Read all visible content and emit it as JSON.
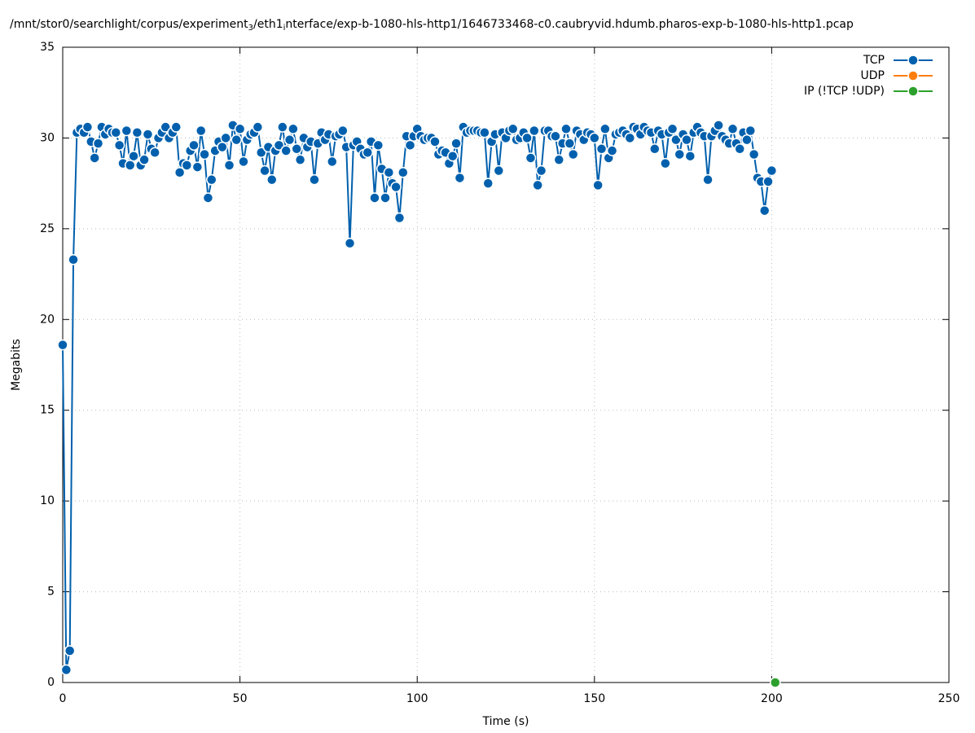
{
  "chart_data": {
    "type": "line",
    "title": [
      "/mnt/stor0/searchlight/corpus/experiment",
      "3",
      "/eth1",
      "i",
      "nterface/exp-b-1080-hls-http1/1646733468-c0.caubryvid.hdumb.pharos-exp-b-1080-hls-http1.pcap"
    ],
    "xlabel": "Time (s)",
    "ylabel": "Megabits",
    "xlim": [
      0,
      250
    ],
    "xticks": [
      0,
      50,
      100,
      150,
      200,
      250
    ],
    "ylim": [
      0,
      35
    ],
    "yticks": [
      0,
      5,
      10,
      15,
      20,
      25,
      30,
      35
    ],
    "grid": true,
    "legend": "top-right",
    "series": [
      {
        "name": "TCP",
        "color": "#0060ad",
        "x": [
          0,
          1,
          2,
          3,
          4,
          5,
          6,
          7,
          8,
          9,
          10,
          11,
          12,
          13,
          14,
          15,
          16,
          17,
          18,
          19,
          20,
          21,
          22,
          23,
          24,
          25,
          26,
          27,
          28,
          29,
          30,
          31,
          32,
          33,
          34,
          35,
          36,
          37,
          38,
          39,
          40,
          41,
          42,
          43,
          44,
          45,
          46,
          47,
          48,
          49,
          50,
          51,
          52,
          53,
          54,
          55,
          56,
          57,
          58,
          59,
          60,
          61,
          62,
          63,
          64,
          65,
          66,
          67,
          68,
          69,
          70,
          71,
          72,
          73,
          74,
          75,
          76,
          77,
          78,
          79,
          80,
          81,
          82,
          83,
          84,
          85,
          86,
          87,
          88,
          89,
          90,
          91,
          92,
          93,
          94,
          95,
          96,
          97,
          98,
          99,
          100,
          101,
          102,
          103,
          104,
          105,
          106,
          107,
          108,
          109,
          110,
          111,
          112,
          113,
          114,
          115,
          116,
          117,
          118,
          119,
          120,
          121,
          122,
          123,
          124,
          125,
          126,
          127,
          128,
          129,
          130,
          131,
          132,
          133,
          134,
          135,
          136,
          137,
          138,
          139,
          140,
          141,
          142,
          143,
          144,
          145,
          146,
          147,
          148,
          149,
          150,
          151,
          152,
          153,
          154,
          155,
          156,
          157,
          158,
          159,
          160,
          161,
          162,
          163,
          164,
          165,
          166,
          167,
          168,
          169,
          170,
          171,
          172,
          173,
          174,
          175,
          176,
          177,
          178,
          179,
          180,
          181,
          182,
          183,
          184,
          185,
          186,
          187,
          188,
          189,
          190,
          191,
          192,
          193,
          194,
          195,
          196,
          197,
          198,
          199,
          200
        ],
        "values": [
          18.6,
          0.7,
          1.75,
          23.3,
          30.3,
          30.5,
          30.3,
          30.6,
          29.8,
          28.9,
          29.7,
          30.6,
          30.2,
          30.5,
          30.3,
          30.3,
          29.6,
          28.6,
          30.4,
          28.5,
          29.0,
          30.3,
          28.5,
          28.8,
          30.2,
          29.4,
          29.2,
          30.0,
          30.3,
          30.6,
          30.0,
          30.3,
          30.6,
          28.1,
          28.6,
          28.5,
          29.3,
          29.6,
          28.4,
          30.4,
          29.1,
          26.7,
          27.7,
          29.3,
          29.8,
          29.5,
          30.0,
          28.5,
          30.7,
          29.9,
          30.5,
          28.7,
          29.9,
          30.2,
          30.3,
          30.6,
          29.2,
          28.2,
          29.5,
          27.7,
          29.3,
          29.6,
          30.6,
          29.3,
          29.9,
          30.5,
          29.4,
          28.8,
          30.0,
          29.5,
          29.8,
          27.7,
          29.7,
          30.3,
          29.9,
          30.2,
          28.7,
          30.1,
          30.2,
          30.4,
          29.5,
          24.2,
          29.6,
          29.8,
          29.4,
          29.1,
          29.2,
          29.8,
          26.7,
          29.6,
          28.3,
          26.7,
          28.1,
          27.5,
          27.3,
          25.6,
          28.1,
          30.1,
          29.6,
          30.1,
          30.5,
          30.1,
          29.9,
          30.0,
          30.0,
          29.8,
          29.1,
          29.3,
          29.2,
          28.6,
          29.0,
          29.7,
          27.8,
          30.6,
          30.3,
          30.4,
          30.4,
          30.4,
          30.3,
          30.3,
          27.5,
          29.8,
          30.2,
          28.2,
          30.3,
          30.0,
          30.4,
          30.5,
          29.9,
          30.0,
          30.3,
          30.0,
          28.9,
          30.4,
          27.4,
          28.2,
          30.4,
          30.4,
          30.1,
          30.1,
          28.8,
          29.7,
          30.5,
          29.7,
          29.1,
          30.4,
          30.2,
          29.9,
          30.3,
          30.2,
          30.0,
          27.4,
          29.4,
          30.5,
          28.9,
          29.3,
          30.2,
          30.3,
          30.4,
          30.2,
          30.0,
          30.6,
          30.5,
          30.2,
          30.6,
          30.4,
          30.3,
          29.4,
          30.4,
          30.2,
          28.6,
          30.3,
          30.5,
          29.9,
          29.1,
          30.2,
          29.9,
          29.0,
          30.3,
          30.6,
          30.3,
          30.1,
          27.7,
          30.1,
          30.4,
          30.7,
          30.1,
          29.9,
          29.7,
          30.5,
          29.7,
          29.4,
          30.3,
          29.9,
          30.4,
          29.1,
          27.8,
          27.6,
          26.0,
          27.6,
          28.2
        ]
      },
      {
        "name": "UDP",
        "color": "#ff7f0e",
        "x": [],
        "values": []
      },
      {
        "name": "IP (!TCP  !UDP)",
        "color": "#2ca02c",
        "x": [
          201
        ],
        "values": [
          0
        ]
      }
    ]
  }
}
